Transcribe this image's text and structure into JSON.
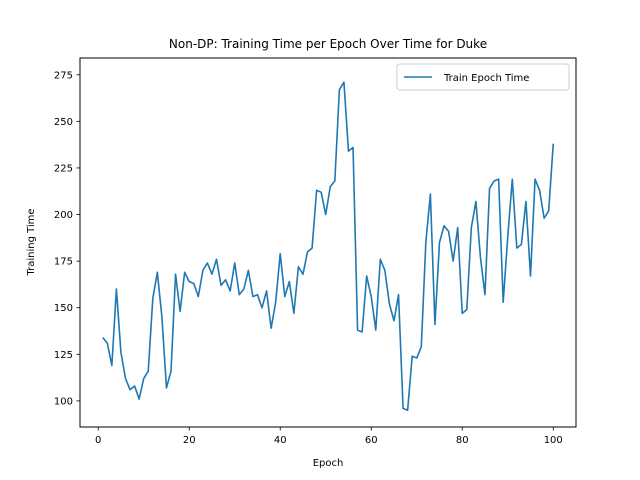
{
  "chart_data": {
    "type": "line",
    "title": "Non-DP: Training Time per Epoch Over Time for Duke",
    "xlabel": "Epoch",
    "ylabel": "Training Time",
    "xlim": [
      -4,
      105
    ],
    "ylim": [
      86,
      284
    ],
    "xticks": [
      0,
      20,
      40,
      60,
      80,
      100
    ],
    "yticks": [
      100,
      125,
      150,
      175,
      200,
      225,
      250,
      275
    ],
    "grid": false,
    "legend_position": "top-right",
    "series": [
      {
        "name": "Train Epoch Time",
        "color": "#1f77b4",
        "x": [
          1,
          2,
          3,
          4,
          5,
          6,
          7,
          8,
          9,
          10,
          11,
          12,
          13,
          14,
          15,
          16,
          17,
          18,
          19,
          20,
          21,
          22,
          23,
          24,
          25,
          26,
          27,
          28,
          29,
          30,
          31,
          32,
          33,
          34,
          35,
          36,
          37,
          38,
          39,
          40,
          41,
          42,
          43,
          44,
          45,
          46,
          47,
          48,
          49,
          50,
          51,
          52,
          53,
          54,
          55,
          56,
          57,
          58,
          59,
          60,
          61,
          62,
          63,
          64,
          65,
          66,
          67,
          68,
          69,
          70,
          71,
          72,
          73,
          74,
          75,
          76,
          77,
          78,
          79,
          80,
          81,
          82,
          83,
          84,
          85,
          86,
          87,
          88,
          89,
          90,
          91,
          92,
          93,
          94,
          95,
          96,
          97,
          98,
          99,
          100
        ],
        "values": [
          134,
          131,
          119,
          160,
          126,
          112,
          106,
          108,
          101,
          112,
          116,
          155,
          169,
          145,
          107,
          116,
          168,
          148,
          169,
          164,
          163,
          156,
          170,
          174,
          168,
          176,
          162,
          165,
          159,
          174,
          157,
          160,
          170,
          156,
          157,
          150,
          159,
          139,
          153,
          179,
          156,
          164,
          147,
          172,
          168,
          180,
          182,
          213,
          212,
          200,
          215,
          218,
          267,
          271,
          234,
          236,
          138,
          137,
          167,
          156,
          138,
          176,
          170,
          152,
          143,
          157,
          96,
          95,
          124,
          123,
          129,
          185,
          211,
          141,
          185,
          194,
          191,
          175,
          193,
          147,
          149,
          193,
          207,
          177,
          157,
          214,
          218,
          219,
          153,
          188,
          219,
          182,
          184,
          207,
          167,
          219,
          213,
          198,
          202,
          238
        ]
      }
    ]
  }
}
